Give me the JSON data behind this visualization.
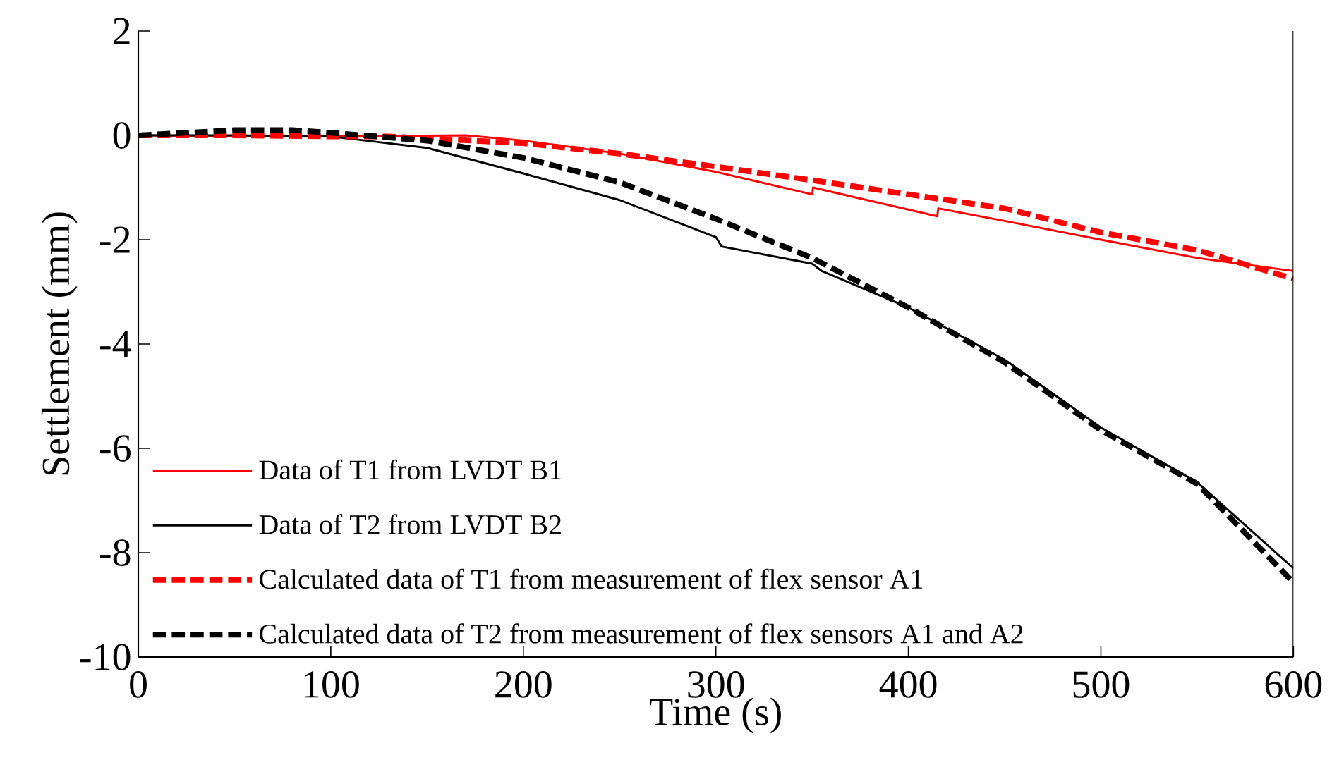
{
  "chart_data": {
    "type": "line",
    "xlabel": "Time (s)",
    "ylabel": "Settlement (mm)",
    "xlim": [
      0,
      600
    ],
    "ylim": [
      -10,
      2
    ],
    "xticks": [
      0,
      100,
      200,
      300,
      400,
      500,
      600
    ],
    "yticks": [
      -10,
      -8,
      -6,
      -4,
      -2,
      0,
      2
    ],
    "grid": false,
    "legend": "bottom left",
    "marker": "none",
    "series": [
      {
        "name": "Data of T1 from  LVDT B1",
        "color": "#ff0000",
        "line_style": "solid",
        "x": [
          0,
          100,
          170,
          200,
          250,
          300,
          350,
          350.5,
          415,
          415.5,
          450,
          500,
          550,
          600
        ],
        "values": [
          0,
          -0.02,
          0,
          -0.1,
          -0.35,
          -0.7,
          -1.13,
          -1.0,
          -1.55,
          -1.4,
          -1.64,
          -2.0,
          -2.35,
          -2.6
        ]
      },
      {
        "name": "Data of T2 from  LVDT B2",
        "color": "#000000",
        "line_style": "solid",
        "x": [
          0,
          50,
          100,
          150,
          200,
          250,
          300,
          303,
          350,
          355,
          400,
          450,
          500,
          550,
          600
        ],
        "values": [
          0,
          0,
          -0.02,
          -0.24,
          -0.73,
          -1.24,
          -1.95,
          -2.13,
          -2.46,
          -2.6,
          -3.3,
          -4.3,
          -5.6,
          -6.65,
          -8.3
        ]
      },
      {
        "name": "Calculated data of T1  from measurement  of flex sensor A1",
        "color": "#ff0000",
        "line_style": "dashed",
        "x": [
          0,
          50,
          100,
          130,
          200,
          250,
          300,
          350,
          400,
          450,
          500,
          550,
          600
        ],
        "values": [
          0,
          0,
          -0.02,
          -0.02,
          -0.15,
          -0.35,
          -0.6,
          -0.86,
          -1.13,
          -1.4,
          -1.86,
          -2.2,
          -2.75
        ]
      },
      {
        "name": "Calculated data of T2  from measurement  of flex sensors A1 and A2",
        "color": "#000000",
        "line_style": "dashed",
        "x": [
          0,
          50,
          80,
          100,
          150,
          200,
          250,
          300,
          350,
          400,
          450,
          500,
          550,
          600
        ],
        "values": [
          0,
          0.1,
          0.1,
          0.05,
          -0.1,
          -0.43,
          -0.9,
          -1.6,
          -2.35,
          -3.3,
          -4.35,
          -5.65,
          -6.68,
          -8.57
        ]
      }
    ]
  }
}
